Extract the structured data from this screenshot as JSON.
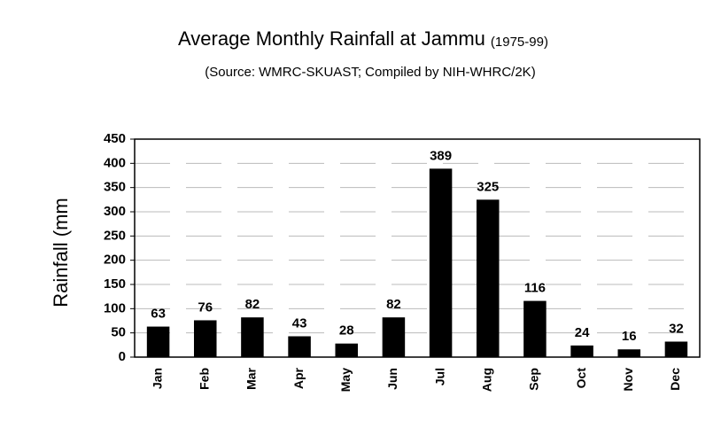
{
  "chart_data": {
    "type": "bar",
    "title": "Average Monthly Rainfall at Jammu",
    "period": "(1975-99)",
    "subtitle": "(Source: WMRC-SKUAST; Compiled by NIH-WHRC/2K)",
    "y_label": "Rainfall (mm",
    "categories": [
      "Jan",
      "Feb",
      "Mar",
      "Apr",
      "May",
      "Jun",
      "Jul",
      "Aug",
      "Sep",
      "Oct",
      "Nov",
      "Dec"
    ],
    "values": [
      63,
      76,
      82,
      43,
      28,
      82,
      389,
      325,
      116,
      24,
      16,
      32
    ],
    "color": "#000000",
    "ylim": [
      0,
      450
    ],
    "yticks": [
      0,
      50,
      100,
      150,
      200,
      250,
      300,
      350,
      400,
      450
    ],
    "grid": true
  }
}
